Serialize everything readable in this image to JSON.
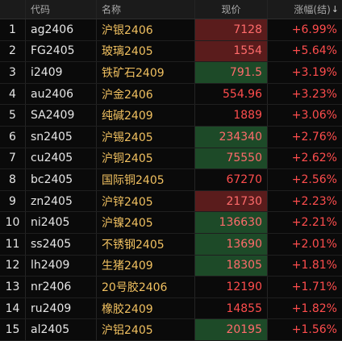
{
  "header": {
    "index": "",
    "code": "代码",
    "name": "名称",
    "price": "现价",
    "change": "涨幅(结)",
    "sort_icon": "sort-down-arrow"
  },
  "rows": [
    {
      "index": "1",
      "code": "ag2406",
      "name": "沪银2406",
      "price": "7128",
      "change": "+6.99%",
      "highlight": "red"
    },
    {
      "index": "2",
      "code": "FG2405",
      "name": "玻璃2405",
      "price": "1554",
      "change": "+5.64%",
      "highlight": "red"
    },
    {
      "index": "3",
      "code": "i2409",
      "name": "铁矿石2409",
      "price": "791.5",
      "change": "+3.19%",
      "highlight": "green"
    },
    {
      "index": "4",
      "code": "au2406",
      "name": "沪金2406",
      "price": "554.96",
      "change": "+3.23%",
      "highlight": "none"
    },
    {
      "index": "5",
      "code": "SA2409",
      "name": "纯碱2409",
      "price": "1889",
      "change": "+3.06%",
      "highlight": "none"
    },
    {
      "index": "6",
      "code": "sn2405",
      "name": "沪锡2405",
      "price": "234340",
      "change": "+2.76%",
      "highlight": "green"
    },
    {
      "index": "7",
      "code": "cu2405",
      "name": "沪铜2405",
      "price": "75550",
      "change": "+2.62%",
      "highlight": "green"
    },
    {
      "index": "8",
      "code": "bc2405",
      "name": "国际铜2405",
      "price": "67270",
      "change": "+2.56%",
      "highlight": "none"
    },
    {
      "index": "9",
      "code": "zn2405",
      "name": "沪锌2405",
      "price": "21730",
      "change": "+2.23%",
      "highlight": "red"
    },
    {
      "index": "10",
      "code": "ni2405",
      "name": "沪镍2405",
      "price": "136630",
      "change": "+2.21%",
      "highlight": "green"
    },
    {
      "index": "11",
      "code": "ss2405",
      "name": "不锈钢2405",
      "price": "13690",
      "change": "+2.01%",
      "highlight": "green"
    },
    {
      "index": "12",
      "code": "lh2409",
      "name": "生猪2409",
      "price": "18305",
      "change": "+1.81%",
      "highlight": "green"
    },
    {
      "index": "13",
      "code": "nr2406",
      "name": "20号胶2406",
      "price": "12190",
      "change": "+1.71%",
      "highlight": "none"
    },
    {
      "index": "14",
      "code": "ru2409",
      "name": "橡胶2409",
      "price": "14855",
      "change": "+1.82%",
      "highlight": "none"
    },
    {
      "index": "15",
      "code": "al2405",
      "name": "沪铝2405",
      "price": "20195",
      "change": "+1.56%",
      "highlight": "green"
    }
  ],
  "colors": {
    "background": "#0a0a0a",
    "name_text": "#f0c060",
    "up_text": "#ff4d4d",
    "highlight_red": "#5a1c1c",
    "highlight_green": "#1d4a28"
  }
}
